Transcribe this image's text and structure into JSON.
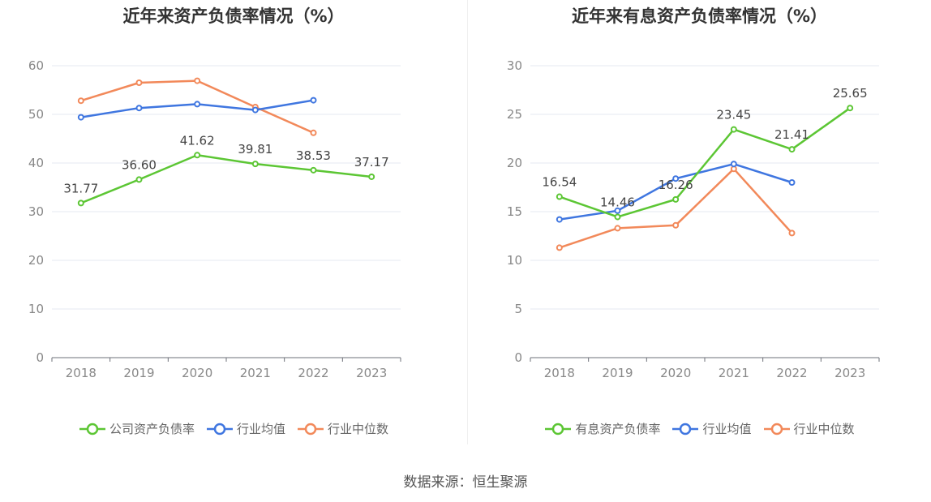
{
  "chart_data": [
    {
      "type": "line",
      "title": "近年来资产负债率情况（%）",
      "categories": [
        "2018",
        "2019",
        "2020",
        "2021",
        "2022",
        "2023"
      ],
      "ylim": [
        0,
        60
      ],
      "yticks": [
        0,
        10,
        20,
        30,
        40,
        50,
        60
      ],
      "grid": true,
      "legend_position": "bottom",
      "series": [
        {
          "name": "公司资产负债率",
          "color": "#5cc634",
          "values": [
            31.77,
            36.6,
            41.62,
            39.81,
            38.53,
            37.17
          ],
          "labels": [
            "31.77",
            "36.60",
            "41.62",
            "39.81",
            "38.53",
            "37.17"
          ]
        },
        {
          "name": "行业均值",
          "color": "#3f76e0",
          "values": [
            49.4,
            51.3,
            52.1,
            50.9,
            52.9,
            null
          ]
        },
        {
          "name": "行业中位数",
          "color": "#f2895a",
          "values": [
            52.8,
            56.5,
            56.9,
            51.5,
            46.2,
            null
          ]
        }
      ]
    },
    {
      "type": "line",
      "title": "近年来有息资产负债率情况（%）",
      "categories": [
        "2018",
        "2019",
        "2020",
        "2021",
        "2022",
        "2023"
      ],
      "ylim": [
        0,
        30
      ],
      "yticks": [
        0,
        5,
        10,
        15,
        20,
        25,
        30
      ],
      "grid": true,
      "legend_position": "bottom",
      "series": [
        {
          "name": "有息资产负债率",
          "color": "#5cc634",
          "values": [
            16.54,
            14.46,
            16.26,
            23.45,
            21.41,
            25.65
          ],
          "labels": [
            "16.54",
            "14.46",
            "16.26",
            "23.45",
            "21.41",
            "25.65"
          ]
        },
        {
          "name": "行业均值",
          "color": "#3f76e0",
          "values": [
            14.2,
            15.1,
            18.4,
            19.9,
            18.0,
            null
          ]
        },
        {
          "name": "行业中位数",
          "color": "#f2895a",
          "values": [
            11.3,
            13.3,
            13.6,
            19.4,
            12.8,
            null
          ]
        }
      ]
    }
  ],
  "source": "数据来源：恒生聚源"
}
